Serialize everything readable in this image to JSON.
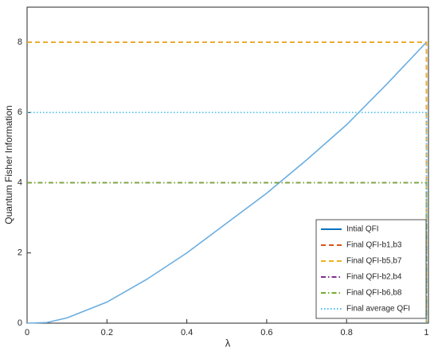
{
  "chart_data": {
    "type": "line",
    "x_label": "λ",
    "y_label": "Quantum Fisher Information",
    "xlim": [
      0,
      1.005
    ],
    "ylim": [
      0,
      9
    ],
    "xticks": [
      0,
      0.2,
      0.4,
      0.6,
      0.8,
      1
    ],
    "yticks": [
      0,
      2,
      4,
      6,
      8
    ],
    "legend": "lower right",
    "series": [
      {
        "name": "Intial QFI",
        "color": "#6aaee0",
        "legend_color": "#0072bd",
        "style": "solid",
        "x": [
          0,
          0.05,
          0.1,
          0.2,
          0.3,
          0.4,
          0.5,
          0.6,
          0.7,
          0.8,
          0.9,
          1
        ],
        "values": [
          0,
          0.02,
          0.15,
          0.6,
          1.25,
          2,
          2.85,
          3.7,
          4.65,
          5.65,
          6.8,
          8
        ]
      },
      {
        "name": "Final QFI-b1,b3",
        "color": "#d95319",
        "style": "dashed",
        "x": [
          0,
          1,
          1
        ],
        "values": [
          8,
          8,
          0
        ]
      },
      {
        "name": "Final QFI-b5,b7",
        "color": "#edb120",
        "style": "dashed",
        "x": [
          0,
          1,
          1
        ],
        "values": [
          8,
          8,
          0
        ]
      },
      {
        "name": "Final QFI-b2,b4",
        "color": "#7e2f8e",
        "style": "dashdot",
        "x": [
          0,
          1,
          1
        ],
        "values": [
          4,
          4,
          0
        ]
      },
      {
        "name": "Final QFI-b6,b8",
        "color": "#77ac30",
        "style": "dashdot",
        "x": [
          0,
          1,
          1
        ],
        "values": [
          4,
          4,
          0
        ]
      },
      {
        "name": "Final average QFI",
        "color": "#4dbeee",
        "style": "dotted",
        "x": [
          0,
          1,
          1
        ],
        "values": [
          6,
          6,
          0
        ]
      }
    ]
  }
}
